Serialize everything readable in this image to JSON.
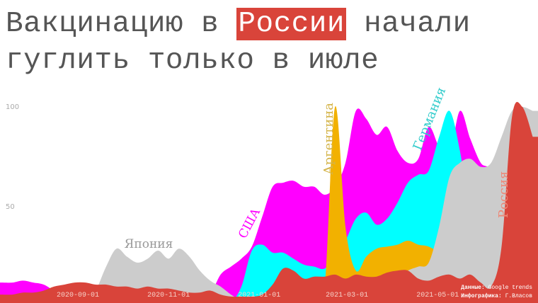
{
  "title": {
    "line1_before": "Вакцинацию в ",
    "line1_highlight": "России",
    "line1_after": " начали",
    "line2": "гуглить только в июле",
    "highlight_color": "#d9443a"
  },
  "credits": {
    "data_label": "Данные:",
    "data_value": " Google trends",
    "author_label": "Инфографика:",
    "author_value": " Г.Власов"
  },
  "chart_data": {
    "type": "area",
    "overlapping": true,
    "grid": false,
    "legend": "inline-labels",
    "ylim": [
      0,
      100
    ],
    "yticks": [
      50,
      100
    ],
    "xticks": [
      "2020-09-01",
      "2020-11-01",
      "2021-01-01",
      "2021-03-01",
      "2021-05-01"
    ],
    "x": [
      "2020-07-12",
      "2020-07-19",
      "2020-07-26",
      "2020-08-02",
      "2020-08-09",
      "2020-08-16",
      "2020-08-23",
      "2020-08-30",
      "2020-09-06",
      "2020-09-13",
      "2020-09-20",
      "2020-09-27",
      "2020-10-04",
      "2020-10-11",
      "2020-10-18",
      "2020-10-25",
      "2020-11-01",
      "2020-11-08",
      "2020-11-15",
      "2020-11-22",
      "2020-11-29",
      "2020-12-06",
      "2020-12-13",
      "2020-12-20",
      "2020-12-27",
      "2021-01-03",
      "2021-01-10",
      "2021-01-17",
      "2021-01-24",
      "2021-01-31",
      "2021-02-07",
      "2021-02-14",
      "2021-02-21",
      "2021-02-28",
      "2021-03-07",
      "2021-03-14",
      "2021-03-21",
      "2021-03-28",
      "2021-04-04",
      "2021-04-11",
      "2021-04-18",
      "2021-04-25",
      "2021-05-02",
      "2021-05-09",
      "2021-05-16",
      "2021-05-23",
      "2021-05-30",
      "2021-06-06",
      "2021-06-13",
      "2021-06-20",
      "2021-06-27",
      "2021-07-04"
    ],
    "series": [
      {
        "name": "США",
        "color": "#ff00ff",
        "label_color": "#ff00ff",
        "values": [
          12,
          12,
          13,
          12,
          11,
          8,
          6,
          5,
          5,
          4,
          3,
          3,
          3,
          3,
          3,
          3,
          3,
          3,
          3,
          4,
          6,
          16,
          20,
          24,
          30,
          45,
          60,
          62,
          63,
          60,
          60,
          56,
          60,
          72,
          98,
          94,
          86,
          90,
          78,
          72,
          74,
          90,
          80,
          76,
          98,
          84,
          72,
          68,
          50,
          30,
          20,
          15
        ]
      },
      {
        "name": "Германия",
        "color": "#00ffff",
        "label_color": "#33cccc",
        "values": [
          0,
          0,
          0,
          0,
          0,
          0,
          0,
          0,
          0,
          0,
          0,
          0,
          0,
          0,
          0,
          0,
          0,
          0,
          0,
          0,
          0,
          0,
          2,
          10,
          28,
          31,
          27,
          27,
          24,
          21,
          20,
          19,
          25,
          33,
          44,
          47,
          41,
          44,
          52,
          62,
          66,
          68,
          85,
          98,
          78,
          45,
          30,
          20,
          15,
          10,
          8,
          5
        ]
      },
      {
        "name": "Аргентина",
        "color": "#f2b100",
        "label_color": "#d4b44a",
        "values": [
          0,
          0,
          0,
          0,
          0,
          0,
          0,
          0,
          0,
          0,
          0,
          0,
          0,
          0,
          0,
          0,
          0,
          0,
          0,
          0,
          0,
          0,
          0,
          0,
          3,
          4,
          2,
          1,
          1,
          1,
          2,
          10,
          100,
          40,
          18,
          25,
          29,
          30,
          31,
          33,
          31,
          30,
          26,
          15,
          10,
          8,
          5,
          3,
          2,
          1,
          0,
          0
        ]
      },
      {
        "name": "Япония",
        "color": "#cccccc",
        "label_color": "#999999",
        "values": [
          0,
          0,
          0,
          0,
          0,
          0,
          0,
          1,
          2,
          8,
          20,
          29,
          25,
          22,
          24,
          28,
          24,
          29,
          25,
          18,
          13,
          10,
          6,
          3,
          1,
          1,
          1,
          1,
          1,
          2,
          1,
          1,
          1,
          1,
          1,
          1,
          3,
          10,
          14,
          18,
          20,
          22,
          40,
          65,
          72,
          74,
          70,
          72,
          85,
          98,
          100,
          98
        ]
      },
      {
        "name": "Россия",
        "color": "#d9443a",
        "label_color": "#ee8877",
        "values": [
          6,
          6,
          7,
          7,
          8,
          10,
          11,
          12,
          12,
          11,
          11,
          10,
          10,
          9,
          10,
          9,
          9,
          8,
          7,
          7,
          8,
          6,
          5,
          5,
          5,
          6,
          11,
          19,
          18,
          14,
          15,
          15,
          16,
          14,
          16,
          15,
          15,
          17,
          18,
          18,
          14,
          13,
          15,
          16,
          14,
          16,
          12,
          10,
          30,
          95,
          100,
          85
        ]
      }
    ]
  }
}
